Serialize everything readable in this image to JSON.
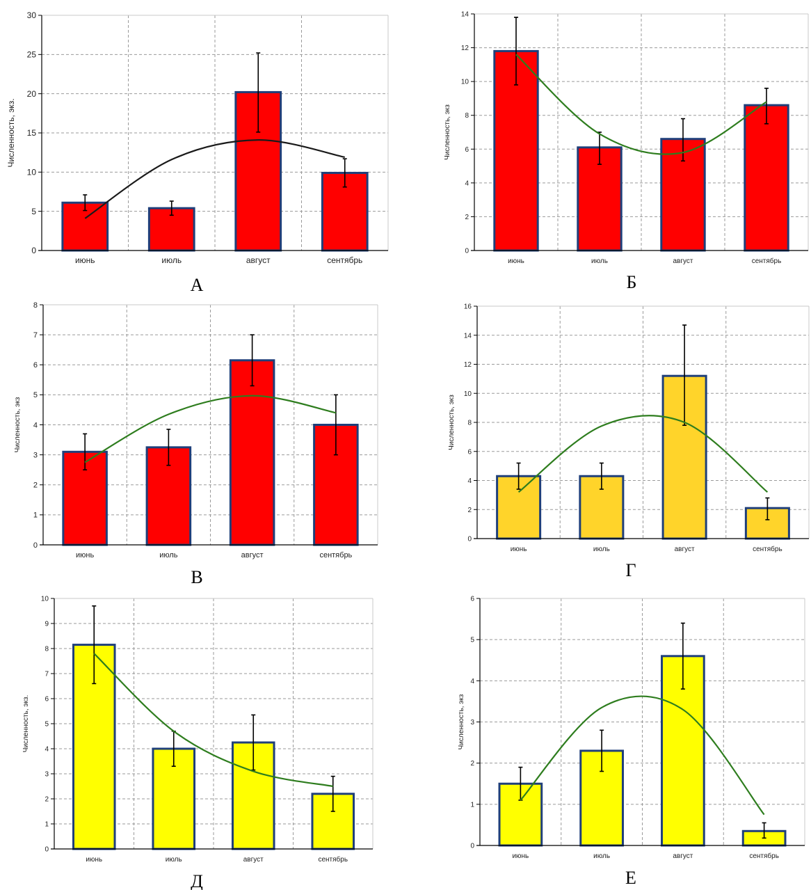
{
  "months": [
    "июнь",
    "июль",
    "август",
    "сентябрь"
  ],
  "chart_data": [
    {
      "type": "bar",
      "panel_label": "А",
      "ylabel": "Численность, экз.",
      "categories": [
        "июнь",
        "июль",
        "август",
        "сентябрь"
      ],
      "values": [
        6.1,
        5.4,
        20.2,
        9.9
      ],
      "error_low": [
        5.1,
        4.5,
        15.1,
        8.1
      ],
      "error_high": [
        7.1,
        6.3,
        25.2,
        11.7
      ],
      "trend": [
        4.1,
        11.6,
        14.1,
        11.9
      ],
      "ylim": [
        0,
        30
      ],
      "yticks": [
        0,
        5,
        10,
        15,
        20,
        25,
        30
      ],
      "bar_color": "#ff0000",
      "trend_color": "#1a1a1a",
      "grid": true,
      "legend": "none"
    },
    {
      "type": "bar",
      "panel_label": "Б",
      "ylabel": "Численность, экз",
      "categories": [
        "июнь",
        "июль",
        "август",
        "сентябрь"
      ],
      "values": [
        11.8,
        6.1,
        6.6,
        8.6
      ],
      "error_low": [
        9.8,
        5.1,
        5.3,
        7.5
      ],
      "error_high": [
        13.8,
        7.0,
        7.8,
        9.6
      ],
      "trend": [
        11.6,
        6.9,
        5.8,
        8.8
      ],
      "ylim": [
        0,
        14
      ],
      "yticks": [
        0,
        2,
        4,
        6,
        8,
        10,
        12,
        14
      ],
      "bar_color": "#ff0000",
      "trend_color": "#2e7d1e",
      "grid": true,
      "legend": "none"
    },
    {
      "type": "bar",
      "panel_label": "В",
      "ylabel": "Численность, экз",
      "categories": [
        "июнь",
        "июль",
        "август",
        "сентябрь"
      ],
      "values": [
        3.1,
        3.25,
        6.15,
        4.0
      ],
      "error_low": [
        2.5,
        2.65,
        5.3,
        3.0
      ],
      "error_high": [
        3.7,
        3.85,
        7.0,
        5.0
      ],
      "trend": [
        2.75,
        4.35,
        4.97,
        4.4
      ],
      "ylim": [
        0,
        8
      ],
      "yticks": [
        0,
        1,
        2,
        3,
        4,
        5,
        6,
        7,
        8
      ],
      "bar_color": "#ff0000",
      "trend_color": "#2e7d1e",
      "grid": true,
      "legend": "none"
    },
    {
      "type": "bar",
      "panel_label": "Г",
      "ylabel": "Численность, экз",
      "categories": [
        "июнь",
        "июль",
        "август",
        "сентябрь"
      ],
      "values": [
        4.3,
        4.3,
        11.2,
        2.1
      ],
      "error_low": [
        3.4,
        3.4,
        7.8,
        1.3
      ],
      "error_high": [
        5.2,
        5.2,
        14.7,
        2.8
      ],
      "trend": [
        3.2,
        7.75,
        8.0,
        3.2
      ],
      "ylim": [
        0,
        16
      ],
      "yticks": [
        0,
        2,
        4,
        6,
        8,
        10,
        12,
        14,
        16
      ],
      "bar_color": "#ffd42a",
      "trend_color": "#2e7d1e",
      "grid": true,
      "legend": "none"
    },
    {
      "type": "bar",
      "panel_label": "Д",
      "ylabel": "Численность, экз.",
      "categories": [
        "июнь",
        "июль",
        "август",
        "сентябрь"
      ],
      "values": [
        8.15,
        4.0,
        4.25,
        2.2
      ],
      "error_low": [
        6.6,
        3.3,
        3.15,
        1.5
      ],
      "error_high": [
        9.7,
        4.7,
        5.35,
        2.9
      ],
      "trend": [
        7.8,
        4.7,
        3.1,
        2.5
      ],
      "ylim": [
        0,
        10
      ],
      "yticks": [
        0,
        1,
        2,
        3,
        4,
        5,
        6,
        7,
        8,
        9,
        10
      ],
      "bar_color": "#ffff00",
      "trend_color": "#2e7d1e",
      "grid": true,
      "legend": "none"
    },
    {
      "type": "bar",
      "panel_label": "Е",
      "ylabel": "Численность, экз",
      "categories": [
        "июнь",
        "июль",
        "август",
        "сентябрь"
      ],
      "values": [
        1.5,
        2.3,
        4.6,
        0.35
      ],
      "error_low": [
        1.1,
        1.8,
        3.8,
        0.18
      ],
      "error_high": [
        1.9,
        2.8,
        5.4,
        0.55
      ],
      "trend": [
        1.1,
        3.35,
        3.3,
        0.75
      ],
      "ylim": [
        0,
        6
      ],
      "yticks": [
        0,
        1,
        2,
        3,
        4,
        5,
        6
      ],
      "bar_color": "#ffff00",
      "trend_color": "#2e7d1e",
      "grid": true,
      "legend": "none"
    }
  ]
}
